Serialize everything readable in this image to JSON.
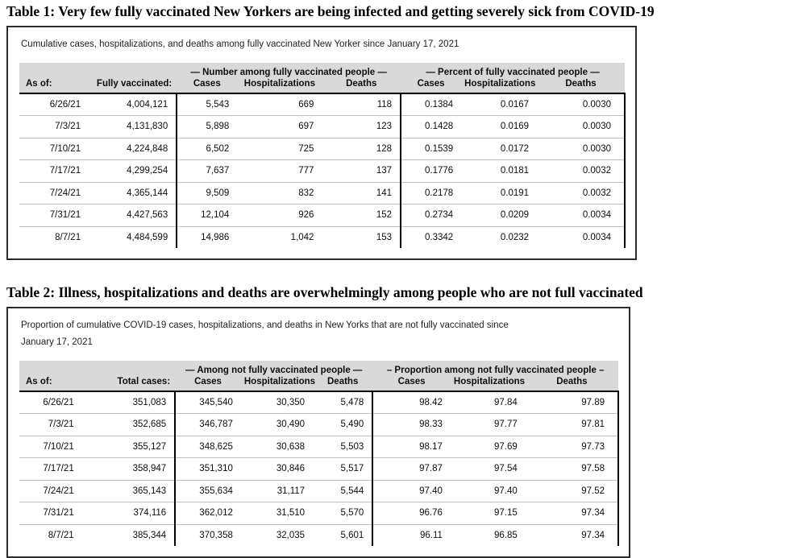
{
  "table1": {
    "title": "Table 1: Very few fully vaccinated New Yorkers are being infected and getting severely sick from COVID-19",
    "subtitle": "Cumulative cases, hospitalizations, and deaths among fully vaccinated New Yorker since January 17, 2021",
    "group1": "— Number among fully vaccinated people —",
    "group2": "— Percent of fully vaccinated people —",
    "columns": [
      "As of:",
      "Fully vaccinated:",
      "Cases",
      "Hospitalizations",
      "Deaths",
      "Cases",
      "Hospitalizations",
      "Deaths"
    ],
    "rows": [
      [
        "6/26/21",
        "4,004,121",
        "5,543",
        "669",
        "118",
        "0.1384",
        "0.0167",
        "0.0030"
      ],
      [
        "7/3/21",
        "4,131,830",
        "5,898",
        "697",
        "123",
        "0.1428",
        "0.0169",
        "0.0030"
      ],
      [
        "7/10/21",
        "4,224,848",
        "6,502",
        "725",
        "128",
        "0.1539",
        "0.0172",
        "0.0030"
      ],
      [
        "7/17/21",
        "4,299,254",
        "7,637",
        "777",
        "137",
        "0.1776",
        "0.0181",
        "0.0032"
      ],
      [
        "7/24/21",
        "4,365,144",
        "9,509",
        "832",
        "141",
        "0.2178",
        "0.0191",
        "0.0032"
      ],
      [
        "7/31/21",
        "4,427,563",
        "12,104",
        "926",
        "152",
        "0.2734",
        "0.0209",
        "0.0034"
      ],
      [
        "8/7/21",
        "4,484,599",
        "14,986",
        "1,042",
        "153",
        "0.3342",
        "0.0232",
        "0.0034"
      ]
    ]
  },
  "table2": {
    "title": "Table 2: Illness, hospitalizations and deaths are overwhelmingly among people who are not full vaccinated",
    "subtitle_line1": "Proportion of cumulative COVID-19 cases, hospitalizations, and deaths in New Yorks that are not fully vaccinated since",
    "subtitle_line2": "January 17, 2021",
    "group1": "— Among not fully vaccinated people —",
    "group2": "– Proportion among not fully vaccinated people –",
    "columns": [
      "As of:",
      "Total cases:",
      "Cases",
      "Hospitalizations",
      "Deaths",
      "Cases",
      "Hospitalizations",
      "Deaths"
    ],
    "rows": [
      [
        "6/26/21",
        "351,083",
        "345,540",
        "30,350",
        "5,478",
        "98.42",
        "97.84",
        "97.89"
      ],
      [
        "7/3/21",
        "352,685",
        "346,787",
        "30,490",
        "5,490",
        "98.33",
        "97.77",
        "97.81"
      ],
      [
        "7/10/21",
        "355,127",
        "348,625",
        "30,638",
        "5,503",
        "98.17",
        "97.69",
        "97.73"
      ],
      [
        "7/17/21",
        "358,947",
        "351,310",
        "30,846",
        "5,517",
        "97.87",
        "97.54",
        "97.58"
      ],
      [
        "7/24/21",
        "365,143",
        "355,634",
        "31,117",
        "5,544",
        "97.40",
        "97.40",
        "97.52"
      ],
      [
        "7/31/21",
        "374,116",
        "362,012",
        "31,510",
        "5,570",
        "96.76",
        "97.15",
        "97.34"
      ],
      [
        "8/7/21",
        "385,344",
        "370,358",
        "32,035",
        "5,601",
        "96.11",
        "96.85",
        "97.34"
      ]
    ]
  },
  "colors": {
    "header_band": "#d9d9d9",
    "box_border": "#2b2b2b",
    "row_separator": "#bdbdbd",
    "text": "#0d0d0d"
  }
}
